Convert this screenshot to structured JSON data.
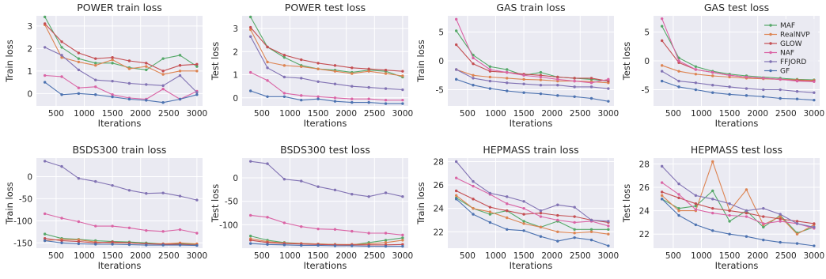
{
  "chart_data": [
    {
      "type": "line",
      "title": "POWER train loss",
      "xlabel": "Iterations",
      "ylabel": "Train loss",
      "x": [
        300,
        600,
        900,
        1200,
        1500,
        1800,
        2100,
        2400,
        2700,
        3000
      ],
      "xlim": [
        150,
        3100
      ],
      "ylim": [
        -0.55,
        3.45
      ],
      "xticks": [
        500,
        1000,
        1500,
        2000,
        2500,
        3000
      ],
      "yticks": [
        0,
        1,
        2,
        3
      ],
      "grid": true,
      "series": [
        {
          "name": "MAF",
          "color": "#55a868",
          "values": [
            3.4,
            2.05,
            1.55,
            1.35,
            1.35,
            1.15,
            1.05,
            1.55,
            1.7,
            1.2
          ]
        },
        {
          "name": "RealNVP",
          "color": "#dd8452",
          "values": [
            3.05,
            1.6,
            1.4,
            1.25,
            1.5,
            1.1,
            1.2,
            0.85,
            1.0,
            1.0
          ]
        },
        {
          "name": "GLOW",
          "color": "#c44e52",
          "values": [
            3.1,
            2.3,
            1.8,
            1.55,
            1.6,
            1.45,
            1.35,
            1.0,
            1.25,
            1.3
          ]
        },
        {
          "name": "NAF",
          "color": "#da64a5",
          "values": [
            0.8,
            0.75,
            0.25,
            0.3,
            -0.05,
            -0.2,
            -0.25,
            0.2,
            -0.25,
            0.1
          ]
        },
        {
          "name": "FFJORD",
          "color": "#8172b3",
          "values": [
            2.05,
            1.7,
            1.05,
            0.6,
            0.55,
            0.45,
            0.4,
            0.35,
            0.8,
            0.05
          ]
        },
        {
          "name": "GF",
          "color": "#4c72b0",
          "values": [
            0.5,
            -0.05,
            0.0,
            -0.05,
            -0.15,
            -0.25,
            -0.3,
            -0.4,
            -0.25,
            -0.05
          ]
        }
      ]
    },
    {
      "type": "line",
      "title": "POWER test loss",
      "xlabel": "Iterations",
      "ylabel": "Test loss",
      "x": [
        300,
        600,
        900,
        1200,
        1500,
        1800,
        2100,
        2400,
        2700,
        3000
      ],
      "xlim": [
        150,
        3100
      ],
      "ylim": [
        -0.35,
        3.55
      ],
      "xticks": [
        500,
        1000,
        1500,
        2000,
        2500,
        3000
      ],
      "yticks": [
        0,
        1,
        2,
        3
      ],
      "grid": true,
      "series": [
        {
          "name": "MAF",
          "color": "#55a868",
          "values": [
            3.5,
            2.2,
            1.75,
            1.4,
            1.25,
            1.2,
            1.1,
            1.2,
            1.15,
            0.9
          ]
        },
        {
          "name": "RealNVP",
          "color": "#dd8452",
          "values": [
            2.95,
            1.55,
            1.4,
            1.35,
            1.25,
            1.15,
            1.05,
            1.15,
            1.05,
            0.95
          ]
        },
        {
          "name": "GLOW",
          "color": "#c44e52",
          "values": [
            3.05,
            2.2,
            1.85,
            1.65,
            1.5,
            1.4,
            1.3,
            1.25,
            1.2,
            1.15
          ]
        },
        {
          "name": "NAF",
          "color": "#da64a5",
          "values": [
            1.1,
            0.75,
            0.2,
            0.1,
            0.05,
            0.0,
            -0.05,
            -0.05,
            -0.1,
            -0.1
          ]
        },
        {
          "name": "FFJORD",
          "color": "#8172b3",
          "values": [
            2.65,
            1.3,
            0.9,
            0.85,
            0.7,
            0.6,
            0.5,
            0.45,
            0.4,
            0.35
          ]
        },
        {
          "name": "GF",
          "color": "#4c72b0",
          "values": [
            0.3,
            0.05,
            0.05,
            -0.1,
            -0.05,
            -0.15,
            -0.2,
            -0.2,
            -0.25,
            -0.25
          ]
        }
      ]
    },
    {
      "type": "line",
      "title": "GAS train loss",
      "xlabel": "Iterations",
      "ylabel": "Train loss",
      "x": [
        300,
        600,
        900,
        1200,
        1500,
        1800,
        2100,
        2400,
        2700,
        3000
      ],
      "xlim": [
        150,
        3100
      ],
      "ylim": [
        -7.8,
        7.8
      ],
      "xticks": [
        500,
        1000,
        1500,
        2000,
        2500,
        3000
      ],
      "yticks": [
        -5,
        0,
        5
      ],
      "grid": true,
      "series": [
        {
          "name": "MAF",
          "color": "#55a868",
          "values": [
            5.2,
            1.0,
            -1.0,
            -1.5,
            -2.5,
            -2.0,
            -2.8,
            -3.0,
            -3.2,
            -3.5
          ]
        },
        {
          "name": "RealNVP",
          "color": "#dd8452",
          "values": [
            -1.5,
            -2.5,
            -2.8,
            -3.0,
            -3.2,
            -3.3,
            -3.5,
            -3.5,
            -3.6,
            -3.8
          ]
        },
        {
          "name": "GLOW",
          "color": "#c44e52",
          "values": [
            2.8,
            -0.5,
            -1.8,
            -2.0,
            -2.3,
            -2.5,
            -2.8,
            -3.0,
            -3.0,
            -3.5
          ]
        },
        {
          "name": "NAF",
          "color": "#da64a5",
          "values": [
            7.2,
            0.5,
            -1.5,
            -2.0,
            -2.5,
            -2.8,
            -3.2,
            -3.5,
            -3.8,
            -3.2
          ]
        },
        {
          "name": "FFJORD",
          "color": "#8172b3",
          "values": [
            -1.5,
            -3.0,
            -3.5,
            -3.8,
            -4.0,
            -4.2,
            -4.2,
            -4.5,
            -4.5,
            -4.8
          ]
        },
        {
          "name": "GF",
          "color": "#4c72b0",
          "values": [
            -3.2,
            -4.2,
            -4.8,
            -5.2,
            -5.5,
            -5.7,
            -6.0,
            -6.2,
            -6.5,
            -7.0
          ]
        }
      ]
    },
    {
      "type": "line",
      "title": "GAS test loss",
      "xlabel": "Iterations",
      "ylabel": "Test loss",
      "x": [
        300,
        600,
        900,
        1200,
        1500,
        1800,
        2100,
        2400,
        2700,
        3000
      ],
      "xlim": [
        150,
        3100
      ],
      "ylim": [
        -7.8,
        7.8
      ],
      "xticks": [
        500,
        1000,
        1500,
        2000,
        2500,
        3000
      ],
      "yticks": [
        -5,
        0,
        5
      ],
      "grid": true,
      "legend": "top-right",
      "series": [
        {
          "name": "MAF",
          "color": "#55a868",
          "values": [
            6.0,
            0.5,
            -1.0,
            -1.8,
            -2.3,
            -2.6,
            -2.8,
            -3.0,
            -3.2,
            -3.3
          ]
        },
        {
          "name": "RealNVP",
          "color": "#dd8452",
          "values": [
            -0.8,
            -1.8,
            -2.3,
            -2.6,
            -2.8,
            -3.0,
            -3.1,
            -3.2,
            -3.3,
            -3.4
          ]
        },
        {
          "name": "GLOW",
          "color": "#c44e52",
          "values": [
            3.5,
            -0.3,
            -1.5,
            -2.0,
            -2.5,
            -2.8,
            -3.0,
            -3.2,
            -3.4,
            -3.5
          ]
        },
        {
          "name": "NAF",
          "color": "#da64a5",
          "values": [
            7.3,
            0.0,
            -1.5,
            -2.0,
            -2.5,
            -2.8,
            -3.0,
            -3.2,
            -3.5,
            -3.6
          ]
        },
        {
          "name": "FFJORD",
          "color": "#8172b3",
          "values": [
            -1.8,
            -3.5,
            -3.8,
            -4.2,
            -4.5,
            -4.8,
            -5.0,
            -5.0,
            -5.3,
            -5.5
          ]
        },
        {
          "name": "GF",
          "color": "#4c72b0",
          "values": [
            -3.5,
            -4.5,
            -5.0,
            -5.5,
            -5.8,
            -6.0,
            -6.2,
            -6.5,
            -6.6,
            -6.8
          ]
        }
      ]
    },
    {
      "type": "line",
      "title": "BSDS300 train loss",
      "xlabel": "Iterations",
      "ylabel": "Train loss",
      "x": [
        300,
        600,
        900,
        1200,
        1500,
        1800,
        2100,
        2400,
        2700,
        3000
      ],
      "xlim": [
        150,
        3100
      ],
      "ylim": [
        -162,
        42
      ],
      "xticks": [
        500,
        1000,
        1500,
        2000,
        2500,
        3000
      ],
      "yticks": [
        -150,
        -100,
        -50,
        0
      ],
      "grid": true,
      "series": [
        {
          "name": "MAF",
          "color": "#55a868",
          "values": [
            -130,
            -140,
            -142,
            -145,
            -147,
            -148,
            -150,
            -152,
            -152,
            -153
          ]
        },
        {
          "name": "RealNVP",
          "color": "#dd8452",
          "values": [
            -145,
            -142,
            -143,
            -148,
            -150,
            -150,
            -152,
            -152,
            -150,
            -152
          ]
        },
        {
          "name": "GLOW",
          "color": "#c44e52",
          "values": [
            -140,
            -145,
            -147,
            -150,
            -148,
            -150,
            -152,
            -153,
            -153,
            -155
          ]
        },
        {
          "name": "NAF",
          "color": "#da64a5",
          "values": [
            -84,
            -94,
            -102,
            -112,
            -112,
            -116,
            -122,
            -124,
            -120,
            -128
          ]
        },
        {
          "name": "FFJORD",
          "color": "#8172b3",
          "values": [
            35,
            23,
            -4,
            -11,
            -20,
            -31,
            -38,
            -37,
            -44,
            -53
          ]
        },
        {
          "name": "GF",
          "color": "#4c72b0",
          "values": [
            -145,
            -150,
            -152,
            -153,
            -153,
            -154,
            -155,
            -155,
            -155,
            -156
          ]
        }
      ]
    },
    {
      "type": "line",
      "title": "BSDS300 test loss",
      "xlabel": "Iterations",
      "ylabel": "Test loss",
      "x": [
        300,
        600,
        900,
        1200,
        1500,
        1800,
        2100,
        2400,
        2700,
        3000
      ],
      "xlim": [
        150,
        3100
      ],
      "ylim": [
        -150,
        42
      ],
      "xticks": [
        500,
        1000,
        1500,
        2000,
        2500,
        3000
      ],
      "yticks": [
        -100,
        -50,
        0
      ],
      "grid": true,
      "series": [
        {
          "name": "MAF",
          "color": "#55a868",
          "values": [
            -124,
            -133,
            -138,
            -140,
            -141,
            -142,
            -143,
            -138,
            -133,
            -128
          ]
        },
        {
          "name": "RealNVP",
          "color": "#dd8452",
          "values": [
            -130,
            -136,
            -139,
            -140,
            -141,
            -142,
            -142,
            -141,
            -138,
            -133
          ]
        },
        {
          "name": "GLOW",
          "color": "#c44e52",
          "values": [
            -133,
            -138,
            -140,
            -141,
            -142,
            -143,
            -143,
            -143,
            -143,
            -142
          ]
        },
        {
          "name": "NAF",
          "color": "#da64a5",
          "values": [
            -80,
            -84,
            -96,
            -104,
            -109,
            -110,
            -114,
            -118,
            -118,
            -122
          ]
        },
        {
          "name": "FFJORD",
          "color": "#8172b3",
          "values": [
            35,
            30,
            -3,
            -7,
            -19,
            -26,
            -35,
            -40,
            -32,
            -40
          ]
        },
        {
          "name": "GF",
          "color": "#4c72b0",
          "values": [
            -140,
            -142,
            -143,
            -144,
            -144,
            -145,
            -145,
            -146,
            -146,
            -146
          ]
        }
      ]
    },
    {
      "type": "line",
      "title": "HEPMASS train loss",
      "xlabel": "Iterations",
      "ylabel": "Train loss",
      "x": [
        300,
        600,
        900,
        1200,
        1500,
        1800,
        2100,
        2400,
        2700,
        3000
      ],
      "xlim": [
        150,
        3100
      ],
      "ylim": [
        20.6,
        28.3
      ],
      "xticks": [
        500,
        1000,
        1500,
        2000,
        2500,
        3000
      ],
      "yticks": [
        22,
        24,
        26,
        28
      ],
      "grid": true,
      "series": [
        {
          "name": "MAF",
          "color": "#55a868",
          "values": [
            24.9,
            24.0,
            23.5,
            23.8,
            22.9,
            22.4,
            22.9,
            22.2,
            22.2,
            22.2
          ]
        },
        {
          "name": "RealNVP",
          "color": "#dd8452",
          "values": [
            25.1,
            24.0,
            23.7,
            23.2,
            22.7,
            22.4,
            22.0,
            21.9,
            22.0,
            21.8
          ]
        },
        {
          "name": "GLOW",
          "color": "#c44e52",
          "values": [
            25.5,
            24.8,
            24.1,
            23.8,
            23.5,
            23.6,
            23.4,
            23.3,
            23.0,
            22.8
          ]
        },
        {
          "name": "NAF",
          "color": "#da64a5",
          "values": [
            26.6,
            25.9,
            25.2,
            24.4,
            24.0,
            23.3,
            23.0,
            22.8,
            22.9,
            22.5
          ]
        },
        {
          "name": "FFJORD",
          "color": "#8172b3",
          "values": [
            28.0,
            26.3,
            25.3,
            25.0,
            24.6,
            23.8,
            24.3,
            24.1,
            23.0,
            22.9
          ]
        },
        {
          "name": "GF",
          "color": "#4c72b0",
          "values": [
            24.8,
            23.5,
            22.8,
            22.2,
            22.1,
            21.6,
            21.2,
            21.5,
            21.3,
            20.8
          ]
        }
      ]
    },
    {
      "type": "line",
      "title": "HEPMASS test loss",
      "xlabel": "Iterations",
      "ylabel": "Test loss",
      "x": [
        300,
        600,
        900,
        1200,
        1500,
        1800,
        2100,
        2400,
        2700,
        3000
      ],
      "xlim": [
        150,
        3100
      ],
      "ylim": [
        20.8,
        28.5
      ],
      "xticks": [
        500,
        1000,
        1500,
        2000,
        2500,
        3000
      ],
      "yticks": [
        22,
        24,
        26,
        28
      ],
      "grid": true,
      "series": [
        {
          "name": "MAF",
          "color": "#55a868",
          "values": [
            25.0,
            24.2,
            24.4,
            25.7,
            23.1,
            24.0,
            22.6,
            23.6,
            22.1,
            22.6
          ]
        },
        {
          "name": "RealNVP",
          "color": "#dd8452",
          "values": [
            25.3,
            24.0,
            24.0,
            28.2,
            24.0,
            25.8,
            22.8,
            23.5,
            22.0,
            22.8
          ]
        },
        {
          "name": "GLOW",
          "color": "#c44e52",
          "values": [
            25.6,
            25.1,
            24.6,
            24.2,
            24.0,
            23.8,
            23.5,
            23.3,
            23.1,
            22.9
          ]
        },
        {
          "name": "NAF",
          "color": "#da64a5",
          "values": [
            26.4,
            25.4,
            24.1,
            23.8,
            23.6,
            23.5,
            22.9,
            23.1,
            22.9,
            22.5
          ]
        },
        {
          "name": "FFJORD",
          "color": "#8172b3",
          "values": [
            27.8,
            26.3,
            25.3,
            25.0,
            24.6,
            24.0,
            24.2,
            23.7,
            22.9,
            22.6
          ]
        },
        {
          "name": "GF",
          "color": "#4c72b0",
          "values": [
            25.0,
            23.6,
            22.8,
            22.3,
            22.0,
            21.8,
            21.5,
            21.3,
            21.2,
            21.0
          ]
        }
      ]
    }
  ]
}
